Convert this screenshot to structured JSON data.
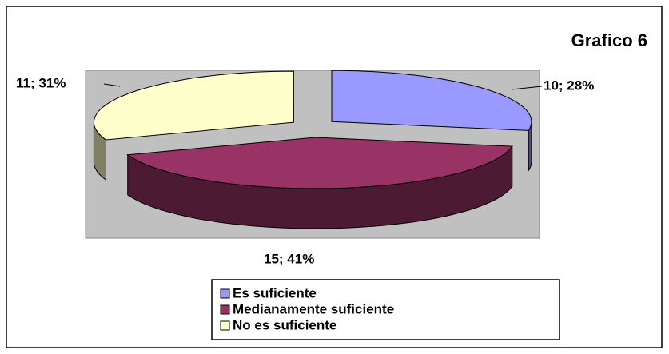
{
  "chart_data": {
    "type": "pie",
    "title": "Grafico 6",
    "categories": [
      "Es suficiente",
      "Medianamente suficiente",
      "No es suficiente"
    ],
    "values": [
      10,
      15,
      11
    ],
    "value_labels": [
      "10; 28%",
      "15; 41%",
      "11; 31%"
    ],
    "colors": [
      "#9999ff",
      "#993366",
      "#ffffcc"
    ]
  }
}
